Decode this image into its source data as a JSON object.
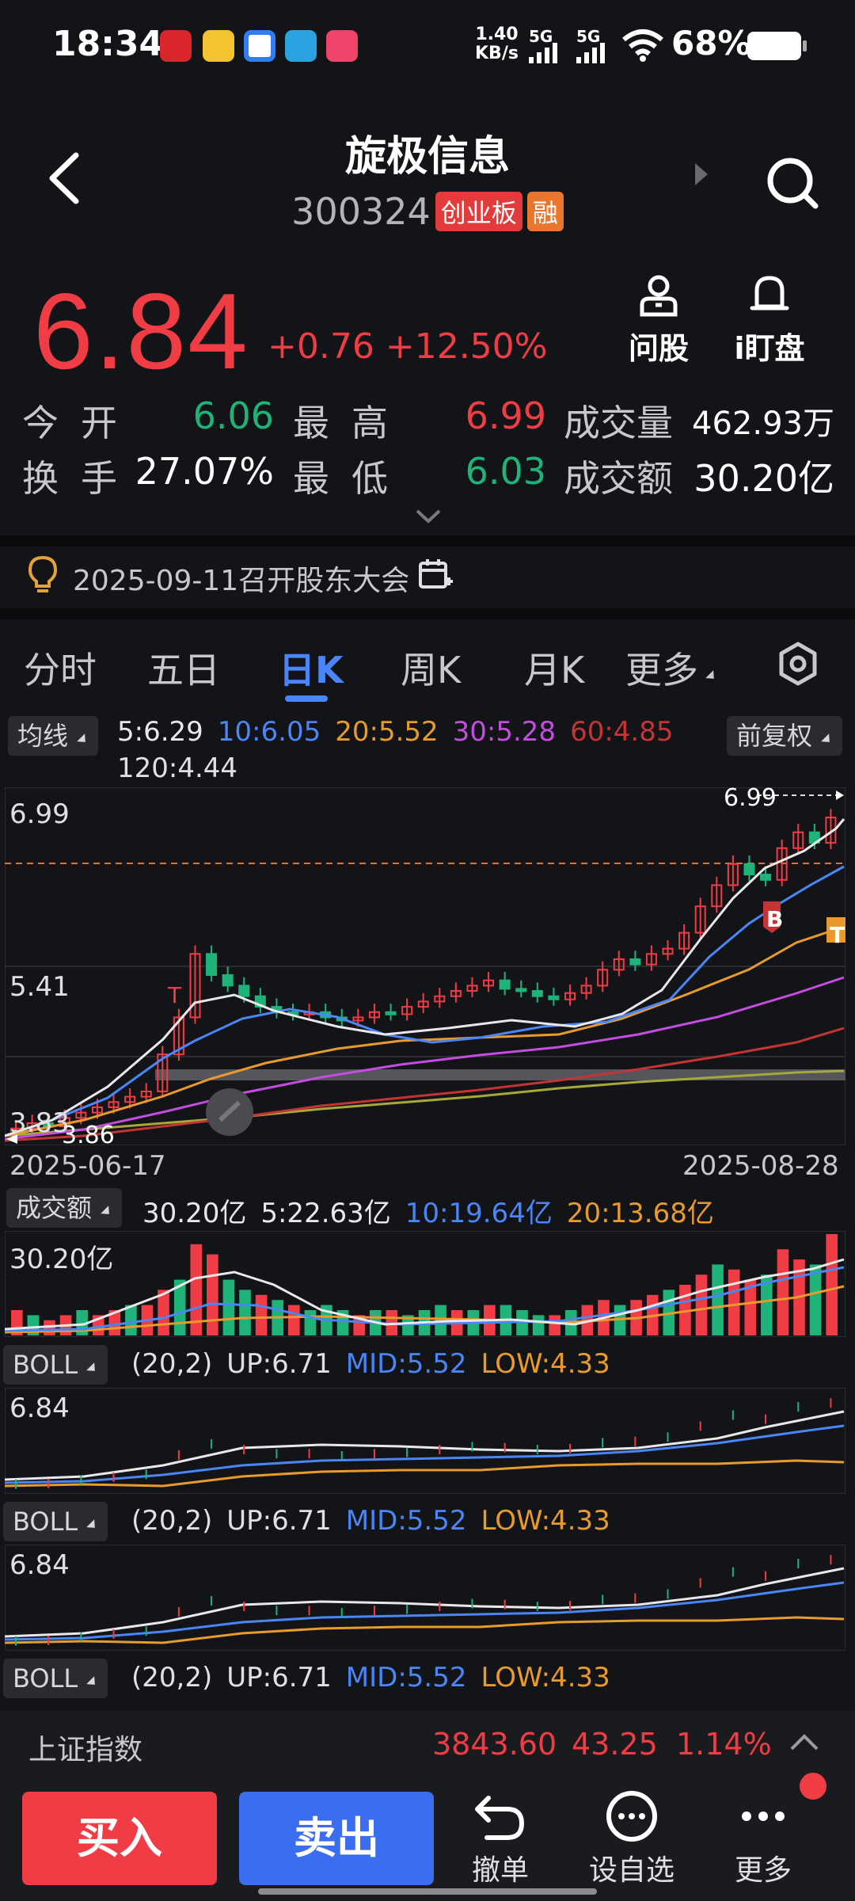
{
  "status_bar": {
    "time": "18:34",
    "speed_value": "1.40",
    "speed_unit": "KB/s",
    "signal_labels": [
      "5G",
      "5G"
    ],
    "battery": "68%",
    "app_icons": [
      "app-red-icon",
      "weibo-icon",
      "app-blue-icon",
      "telegram-icon",
      "app-pink-icon"
    ]
  },
  "header": {
    "stock_name": "旋极信息",
    "stock_code": "300324",
    "board_tag": "创业板",
    "margin_tag": "融"
  },
  "quote": {
    "price": "6.84",
    "change": "+0.76",
    "change_pct": "+12.50%",
    "ask_label": "问股",
    "watch_label": "i盯盘",
    "open_label": "今开",
    "open_value": "6.06",
    "high_label": "最高",
    "high_value": "6.99",
    "volume_label": "成交量",
    "volume_value": "462.93万",
    "turnover_label": "换手",
    "turnover_value": "27.07%",
    "low_label": "最低",
    "low_value": "6.03",
    "amount_label": "成交额",
    "amount_value": "30.20亿"
  },
  "notice": {
    "text": "2025-09-11召开股东大会"
  },
  "tabs": [
    "分时",
    "五日",
    "日K",
    "周K",
    "月K",
    "更多"
  ],
  "active_tab": 2,
  "ma": {
    "selector": "均线",
    "ma5": "5:6.29",
    "ma10": "10:6.05",
    "ma20": "20:5.52",
    "ma30": "30:5.28",
    "ma60": "60:4.85",
    "ma120": "120:4.44",
    "adjust": "前复权"
  },
  "kline": {
    "high_label": "6.99",
    "mid_label": "5.41",
    "low_label": "3.83",
    "min_marker": "3.86",
    "max_marker": "6.99",
    "start_date": "2025-06-17",
    "end_date": "2025-08-28",
    "b_marker": "B",
    "t_marker": "T",
    "t_small": "T"
  },
  "amount_panel": {
    "selector": "成交额",
    "total": "30.20亿",
    "m5": "5:22.63亿",
    "m10": "10:19.64亿",
    "m20": "20:13.68亿",
    "axis": "30.20亿"
  },
  "boll": [
    {
      "selector": "BOLL",
      "params": "(20,2)",
      "up": "UP:6.71",
      "mid": "MID:5.52",
      "low": "LOW:4.33",
      "axis": "6.84"
    },
    {
      "selector": "BOLL",
      "params": "(20,2)",
      "up": "UP:6.71",
      "mid": "MID:5.52",
      "low": "LOW:4.33",
      "axis": "6.84"
    },
    {
      "selector": "BOLL",
      "params": "(20,2)",
      "up": "UP:6.71",
      "mid": "MID:5.52",
      "low": "LOW:4.33"
    }
  ],
  "index_bar": {
    "name": "上证指数",
    "value": "3843.60",
    "change": "43.25",
    "pct": "1.14%"
  },
  "actions": {
    "buy": "买入",
    "sell": "卖出",
    "cancel": "撤单",
    "watchlist": "设自选",
    "more": "更多"
  },
  "colors": {
    "up": "#f03c45",
    "down": "#1fb37a",
    "ma5": "#e8e8ea",
    "ma10": "#4a86f7",
    "ma20": "#e89a2c",
    "ma30": "#c44de0",
    "ma60": "#c43434",
    "ma120": "#a8a83a"
  }
}
